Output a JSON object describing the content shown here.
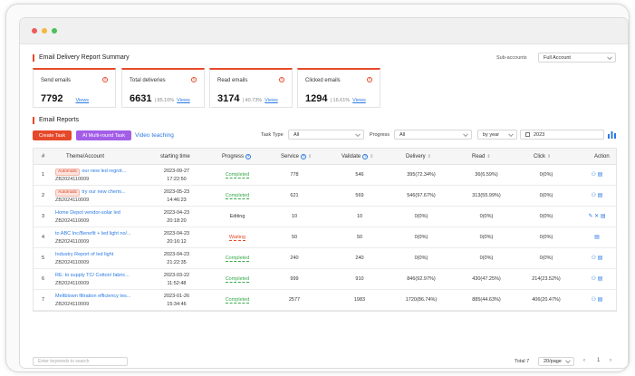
{
  "summary": {
    "title": "Email Delivery Report Summary",
    "subaccount_label": "Sub-accounts",
    "subaccount_value": "Full Account",
    "cards": [
      {
        "label": "Send emails",
        "value": "7792",
        "pct": "",
        "view": "Views"
      },
      {
        "label": "Total deliveries",
        "value": "6631",
        "pct": "| 85.10%",
        "view": "Views"
      },
      {
        "label": "Read emails",
        "value": "3174",
        "pct": "| 40.73%",
        "view": "Views"
      },
      {
        "label": "Clicked emails",
        "value": "1294",
        "pct": "| 16.61%",
        "view": "Views"
      }
    ]
  },
  "reports": {
    "title": "Email Reports",
    "create_label": "Create Task",
    "ai_label": "AI Multi-round Task",
    "video_label": "Video teaching",
    "task_type_label": "Task Type",
    "task_type_value": "All",
    "progress_label": "Progress",
    "progress_value": "All",
    "period_value": "by year",
    "year_value": "2023"
  },
  "table": {
    "headers": {
      "idx": "#",
      "theme": "Theme/Account",
      "start": "starting time",
      "progress": "Progress",
      "service": "Service",
      "validate": "Validate",
      "delivery": "Delivery",
      "read": "Read",
      "click": "Click",
      "action": "Action"
    },
    "rows": [
      {
        "idx": "1",
        "tag": "Automatic",
        "theme": "our new led regrot...",
        "account": "ZB2024110009",
        "date": "2023-09-27",
        "time": "17:22:50",
        "progress": "Completed",
        "status": "completed",
        "service": "778",
        "validate": "546",
        "delivery": "395(72.34%)",
        "read": "36(6.59%)",
        "click": "0(0%)",
        "actions": "⚇ ▤"
      },
      {
        "idx": "2",
        "tag": "Automatic",
        "theme": "try our new chemi...",
        "account": "ZB2024110009",
        "date": "2023-05-23",
        "time": "14:46:23",
        "progress": "Completed",
        "status": "completed",
        "service": "621",
        "validate": "569",
        "delivery": "546(97.67%)",
        "read": "313(55.99%)",
        "click": "0(0%)",
        "actions": "⚇ ▤"
      },
      {
        "idx": "3",
        "tag": "",
        "theme": "Home Depot vendor-solar led",
        "account": "ZB2024110009",
        "date": "2023-04-23",
        "time": "20:18:20",
        "progress": "Editing",
        "status": "editing",
        "service": "10",
        "validate": "10",
        "delivery": "0(0%)",
        "read": "0(0%)",
        "click": "0(0%)",
        "actions": "✎ ✕ ▤"
      },
      {
        "idx": "4",
        "tag": "",
        "theme": "to ABC Inc/Benefit + led light no/...",
        "account": "ZB2024110009",
        "date": "2023-04-23",
        "time": "20:16:12",
        "progress": "Waiting",
        "status": "waiting",
        "service": "50",
        "validate": "50",
        "delivery": "0(0%)",
        "read": "0(0%)",
        "click": "0(0%)",
        "actions": "▤"
      },
      {
        "idx": "5",
        "tag": "",
        "theme": "Industry Report of led light",
        "account": "ZB2024110009",
        "date": "2023-04-23",
        "time": "21:22:35",
        "progress": "Completed",
        "status": "completed",
        "service": "240",
        "validate": "240",
        "delivery": "0(0%)",
        "read": "0(0%)",
        "click": "0(0%)",
        "actions": "⚇ ▤"
      },
      {
        "idx": "6",
        "tag": "",
        "theme": "RE: to supply TC/ Cotton/ fabric...",
        "account": "ZB2024110009",
        "date": "2023-03-22",
        "time": "11:52:48",
        "progress": "Completed",
        "status": "completed",
        "service": "999",
        "validate": "910",
        "delivery": "846(92.97%)",
        "read": "430(47.25%)",
        "click": "214(23.52%)",
        "actions": "⚇ ▤"
      },
      {
        "idx": "7",
        "tag": "",
        "theme": "Meltblown filtration efficiency tes...",
        "account": "ZB2024110009",
        "date": "2023-01-26",
        "time": "15:34:46",
        "progress": "Completed",
        "status": "completed",
        "service": "2577",
        "validate": "1983",
        "delivery": "1720(86.74%)",
        "read": "885(44.63%)",
        "click": "406(20.47%)",
        "actions": "⚇ ▤"
      }
    ]
  },
  "footer": {
    "search_placeholder": "Enter keywords to search",
    "total": "Total 7",
    "page_size": "20/page",
    "prev": "‹",
    "page": "1",
    "next": "›"
  }
}
